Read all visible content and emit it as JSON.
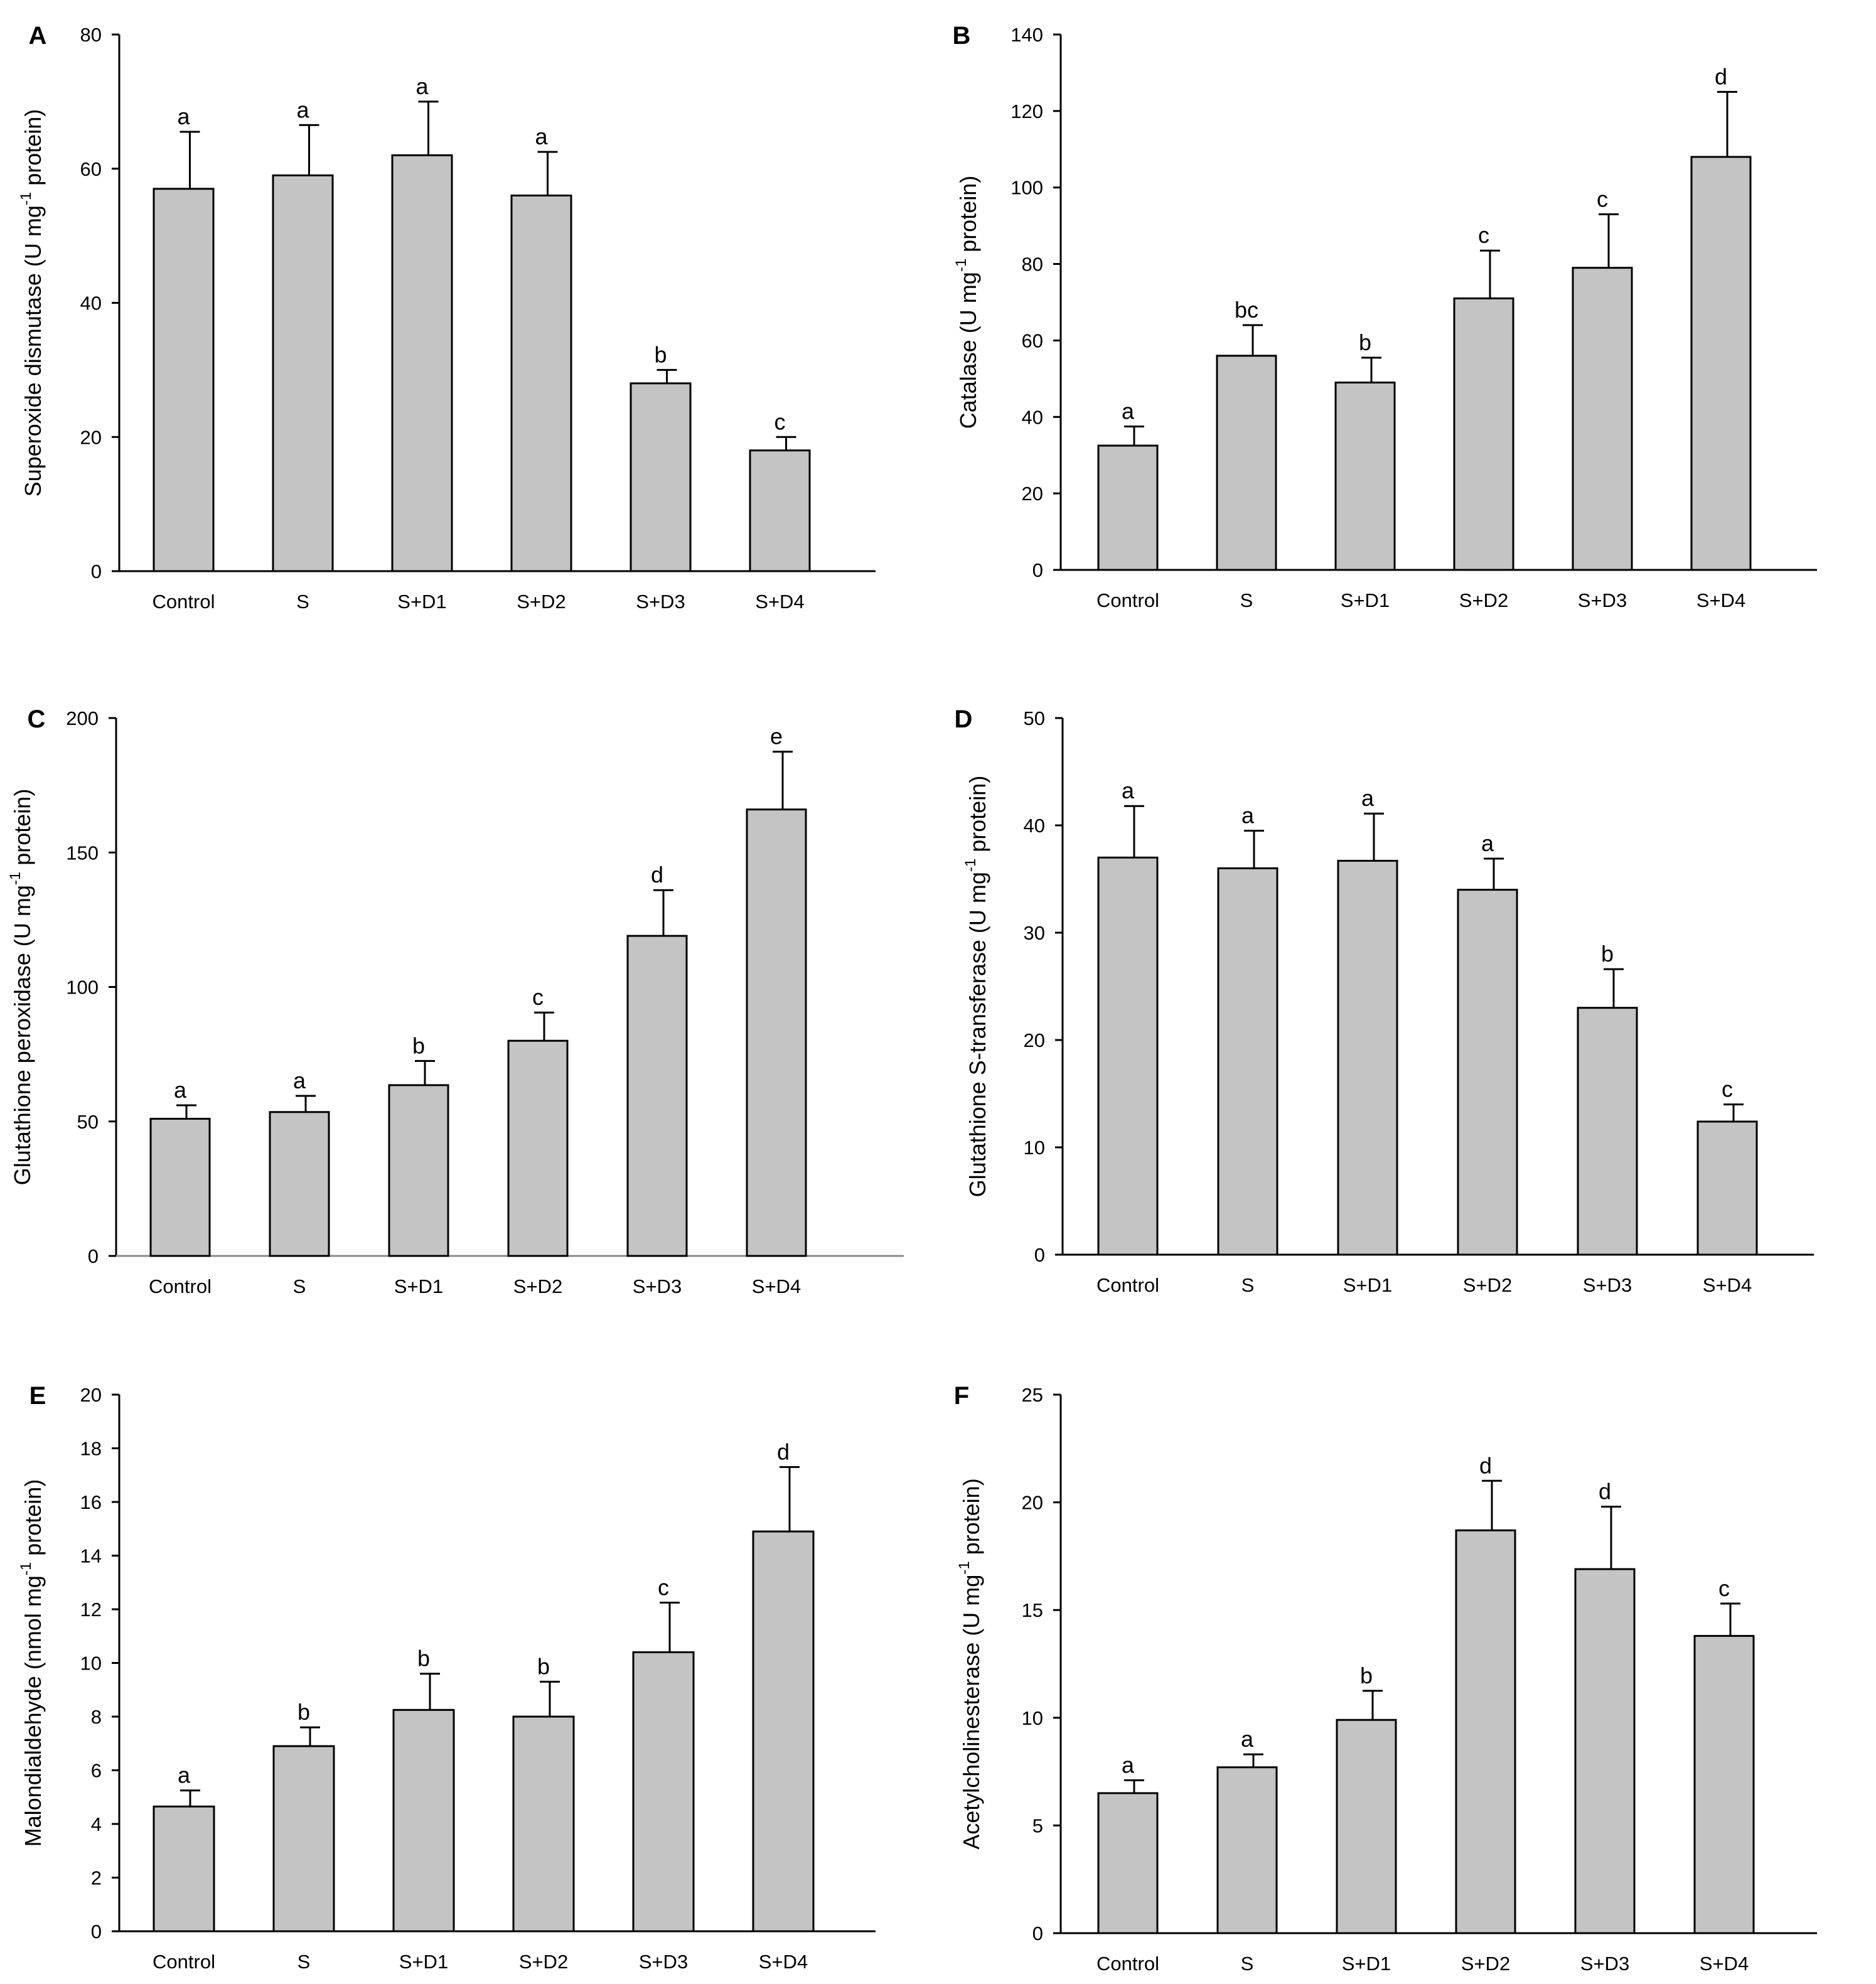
{
  "chart_data": [
    {
      "panel": "A",
      "type": "bar",
      "ylabel": {
        "main": "Superoxide dismutase (U mg",
        "sup": "-1",
        "tail": " protein)"
      },
      "ylim": [
        0,
        80
      ],
      "yticks": [
        0,
        20,
        40,
        60,
        80
      ],
      "categories": [
        "Control",
        "S",
        "S+D1",
        "S+D2",
        "S+D3",
        "S+D4"
      ],
      "values": [
        57,
        59,
        62,
        56,
        28,
        18
      ],
      "errors": [
        8.5,
        7.5,
        8,
        6.5,
        2,
        2
      ],
      "labels": [
        "a",
        "a",
        "a",
        "a",
        "b",
        "c"
      ]
    },
    {
      "panel": "B",
      "type": "bar",
      "ylabel": {
        "main": "Catalase (U mg",
        "sup": "-1",
        "tail": " protein)"
      },
      "ylim": [
        0,
        140
      ],
      "yticks": [
        0,
        20,
        40,
        60,
        80,
        100,
        120,
        140
      ],
      "categories": [
        "Control",
        "S",
        "S+D1",
        "S+D2",
        "S+D3",
        "S+D4"
      ],
      "values": [
        32.5,
        56,
        49,
        71,
        79,
        108
      ],
      "errors": [
        5,
        8,
        6.5,
        12.5,
        14,
        17
      ],
      "labels": [
        "a",
        "bc",
        "b",
        "c",
        "c",
        "d"
      ]
    },
    {
      "panel": "C",
      "type": "bar",
      "ylabel": {
        "main": "Glutathione peroxidase (U mg",
        "sup": "-1",
        "tail": " protein)"
      },
      "ylim": [
        0,
        200
      ],
      "yticks": [
        0,
        50,
        100,
        150,
        200
      ],
      "categories": [
        "Control",
        "S",
        "S+D1",
        "S+D2",
        "S+D3",
        "S+D4"
      ],
      "values": [
        51,
        53.5,
        63.5,
        80,
        119,
        166
      ],
      "errors": [
        5,
        6,
        9,
        10.5,
        17,
        21.5
      ],
      "labels": [
        "a",
        "a",
        "b",
        "c",
        "d",
        "e"
      ]
    },
    {
      "panel": "D",
      "type": "bar",
      "ylabel": {
        "main": "Glutathione S-transferase (U mg",
        "sup": "-1",
        "tail": " protein)"
      },
      "ylim": [
        0,
        50
      ],
      "yticks": [
        0,
        10,
        20,
        30,
        40,
        50
      ],
      "categories": [
        "Control",
        "S",
        "S+D1",
        "S+D2",
        "S+D3",
        "S+D4"
      ],
      "values": [
        37,
        36,
        36.7,
        34,
        23,
        12.4
      ],
      "errors": [
        4.8,
        3.5,
        4.4,
        2.9,
        3.6,
        1.6
      ],
      "labels": [
        "a",
        "a",
        "a",
        "a",
        "b",
        "c"
      ]
    },
    {
      "panel": "E",
      "type": "bar",
      "ylabel": {
        "main": "Malondialdehyde (nmol mg",
        "sup": "-1",
        "tail": " protein)"
      },
      "ylim": [
        0,
        20
      ],
      "yticks": [
        0,
        2,
        4,
        6,
        8,
        10,
        12,
        14,
        16,
        18,
        20
      ],
      "categories": [
        "Control",
        "S",
        "S+D1",
        "S+D2",
        "S+D3",
        "S+D4"
      ],
      "values": [
        4.65,
        6.9,
        8.25,
        8.0,
        10.4,
        14.9
      ],
      "errors": [
        0.6,
        0.7,
        1.35,
        1.3,
        1.85,
        2.4
      ],
      "labels": [
        "a",
        "b",
        "b",
        "b",
        "c",
        "d"
      ]
    },
    {
      "panel": "F",
      "type": "bar",
      "ylabel": {
        "main": "Acetylcholinesterase  (U mg",
        "sup": "-1",
        "tail": " protein)"
      },
      "ylim": [
        0,
        25
      ],
      "yticks": [
        0,
        5,
        10,
        15,
        20,
        25
      ],
      "categories": [
        "Control",
        "S",
        "S+D1",
        "S+D2",
        "S+D3",
        "S+D4"
      ],
      "values": [
        6.5,
        7.7,
        9.9,
        18.7,
        16.9,
        13.8
      ],
      "errors": [
        0.6,
        0.6,
        1.35,
        2.3,
        2.9,
        1.5
      ],
      "labels": [
        "a",
        "a",
        "b",
        "d",
        "d",
        "c"
      ]
    }
  ]
}
